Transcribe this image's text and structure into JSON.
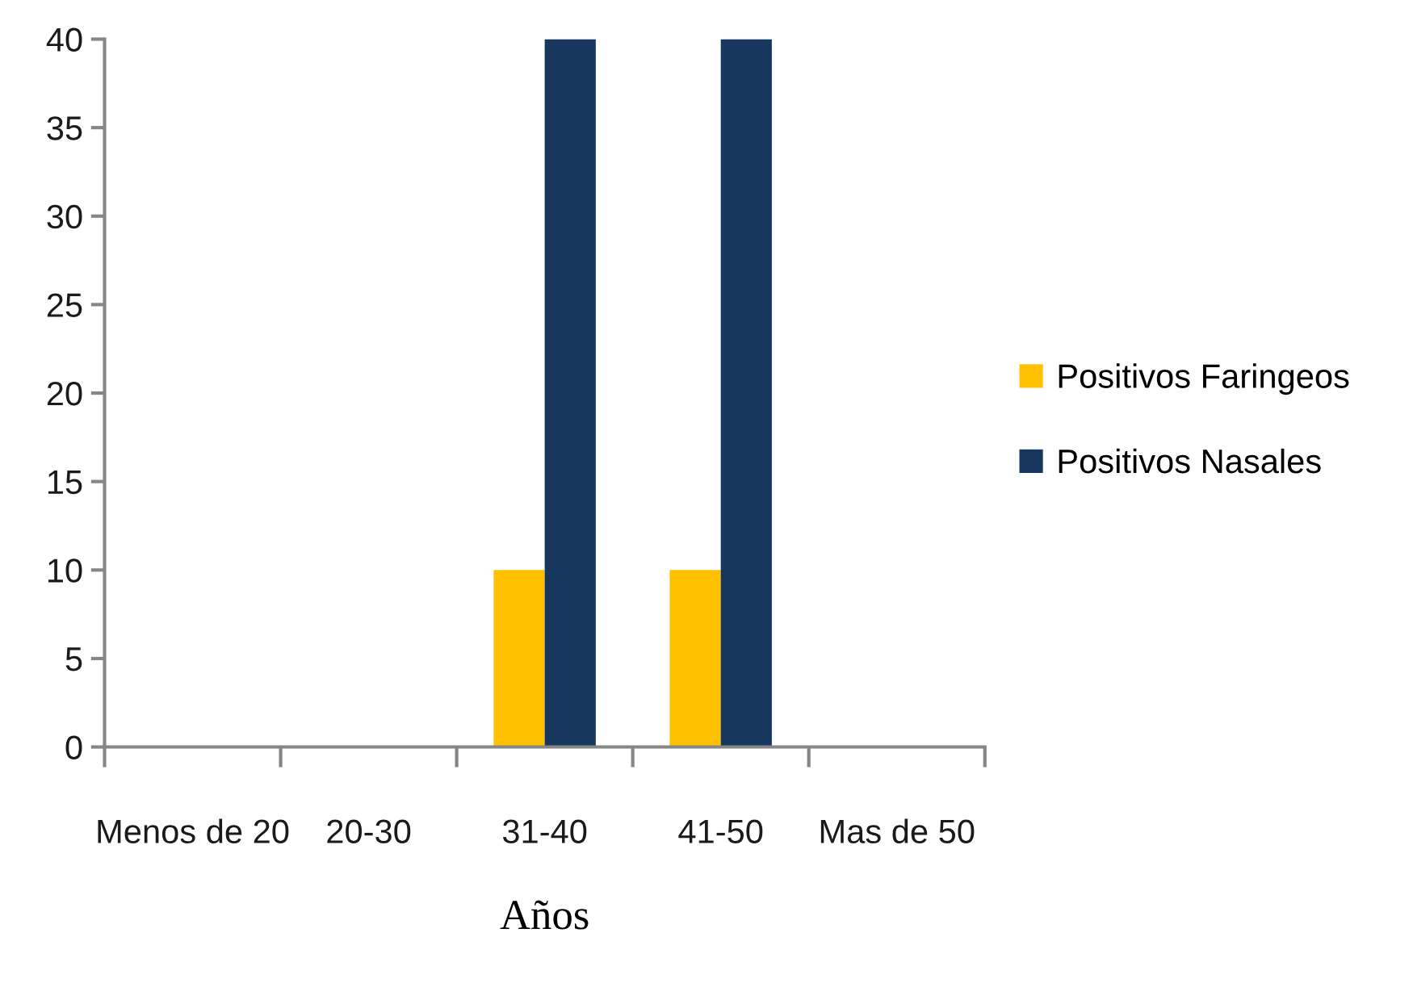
{
  "chart_data": {
    "type": "bar",
    "xlabel": "Años",
    "categories": [
      "Menos de 20",
      "20-30",
      "31-40",
      "41-50",
      "Mas de 50"
    ],
    "series": [
      {
        "name": "Positivos Faringeos",
        "color": "#ffc000",
        "values": [
          0,
          0,
          10,
          10,
          0
        ]
      },
      {
        "name": "Positivos Nasales",
        "color": "#17375e",
        "values": [
          0,
          0,
          40,
          40,
          0
        ]
      }
    ],
    "ylim": [
      0,
      40
    ],
    "yticks": [
      0,
      5,
      10,
      15,
      20,
      25,
      30,
      35,
      40
    ],
    "grid": false,
    "legend": "right"
  }
}
